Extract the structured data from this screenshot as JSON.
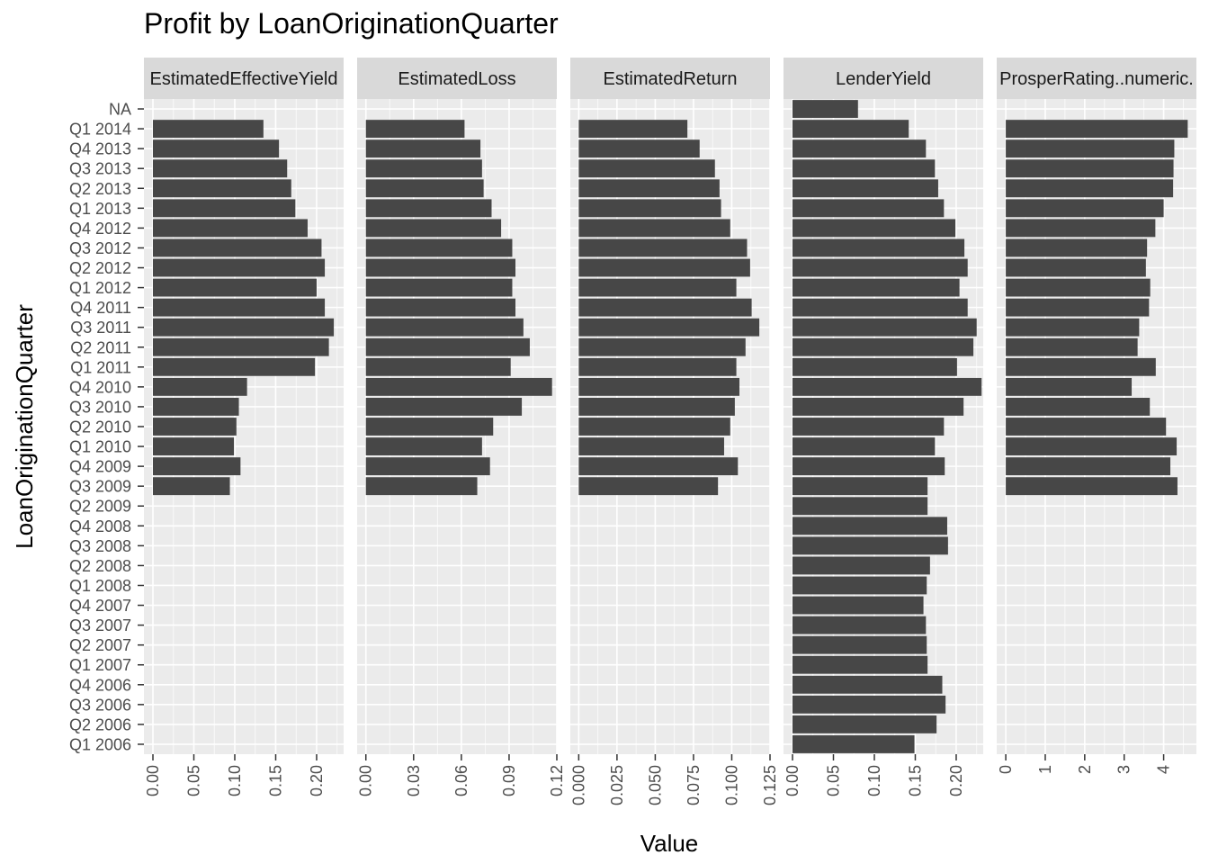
{
  "chart_data": {
    "type": "bar",
    "orientation": "horizontal",
    "faceted": true,
    "title": "Profit by LoanOriginationQuarter",
    "xlabel": "Value",
    "ylabel": "LoanOriginationQuarter",
    "grid": true,
    "legend": "none",
    "colors": {
      "bar": "#474747",
      "panel_bg": "#ebebeb",
      "strip_bg": "#d9d9d9",
      "grid": "#ffffff",
      "text": "#4d4d4d"
    },
    "categories": [
      "NA",
      "Q1 2014",
      "Q4 2013",
      "Q3 2013",
      "Q2 2013",
      "Q1 2013",
      "Q4 2012",
      "Q3 2012",
      "Q2 2012",
      "Q1 2012",
      "Q4 2011",
      "Q3 2011",
      "Q2 2011",
      "Q1 2011",
      "Q4 2010",
      "Q3 2010",
      "Q2 2010",
      "Q1 2010",
      "Q4 2009",
      "Q3 2009",
      "Q2 2009",
      "Q4 2008",
      "Q3 2008",
      "Q2 2008",
      "Q1 2008",
      "Q4 2007",
      "Q3 2007",
      "Q2 2007",
      "Q1 2007",
      "Q4 2006",
      "Q3 2006",
      "Q2 2006",
      "Q1 2006"
    ],
    "facets": [
      {
        "strip": "EstimatedEffectiveYield",
        "xlim": [
          -0.011,
          0.233
        ],
        "ticks": [
          0,
          0.05,
          0.1,
          0.15,
          0.2
        ],
        "tick_labels": [
          "0.00",
          "0.05",
          "0.10",
          "0.15",
          "0.20"
        ],
        "values": [
          null,
          0.135,
          0.154,
          0.164,
          0.169,
          0.174,
          0.189,
          0.206,
          0.21,
          0.2,
          0.21,
          0.221,
          0.215,
          0.198,
          0.115,
          0.105,
          0.102,
          0.099,
          0.107,
          0.094,
          null,
          null,
          null,
          null,
          null,
          null,
          null,
          null,
          null,
          null,
          null,
          null,
          null
        ]
      },
      {
        "strip": "EstimatedLoss",
        "xlim": [
          -0.0055,
          0.12
        ],
        "ticks": [
          0,
          0.03,
          0.06,
          0.09,
          0.12
        ],
        "tick_labels": [
          "0.00",
          "0.03",
          "0.06",
          "0.09",
          "0.12"
        ],
        "values": [
          null,
          0.062,
          0.072,
          0.073,
          0.074,
          0.079,
          0.085,
          0.092,
          0.094,
          0.092,
          0.094,
          0.099,
          0.103,
          0.091,
          0.117,
          0.098,
          0.08,
          0.073,
          0.078,
          0.07,
          null,
          null,
          null,
          null,
          null,
          null,
          null,
          null,
          null,
          null,
          null,
          null,
          null
        ]
      },
      {
        "strip": "EstimatedReturn",
        "xlim": [
          -0.0055,
          0.125
        ],
        "ticks": [
          0,
          0.025,
          0.05,
          0.075,
          0.1,
          0.125
        ],
        "tick_labels": [
          "0.000",
          "0.025",
          "0.050",
          "0.075",
          "0.100",
          "0.125"
        ],
        "values": [
          null,
          0.071,
          0.079,
          0.089,
          0.092,
          0.093,
          0.099,
          0.11,
          0.112,
          0.103,
          0.113,
          0.118,
          0.109,
          0.103,
          0.105,
          0.102,
          0.099,
          0.095,
          0.104,
          0.091,
          null,
          null,
          null,
          null,
          null,
          null,
          null,
          null,
          null,
          null,
          null,
          null,
          null
        ]
      },
      {
        "strip": "LenderYield",
        "xlim": [
          -0.011,
          0.233
        ],
        "ticks": [
          0,
          0.05,
          0.1,
          0.15,
          0.2
        ],
        "tick_labels": [
          "0.00",
          "0.05",
          "0.10",
          "0.15",
          "0.20"
        ],
        "values": [
          0.08,
          0.142,
          0.163,
          0.174,
          0.178,
          0.185,
          0.199,
          0.21,
          0.214,
          0.204,
          0.214,
          0.225,
          0.221,
          0.201,
          0.231,
          0.209,
          0.185,
          0.174,
          0.186,
          0.165,
          0.165,
          0.189,
          0.19,
          0.168,
          0.164,
          0.16,
          0.163,
          0.164,
          0.165,
          0.183,
          0.187,
          0.176,
          0.149
        ]
      },
      {
        "strip": "ProsperRating..numeric.",
        "xlim": [
          -0.23,
          4.83
        ],
        "ticks": [
          0,
          1,
          2,
          3,
          4
        ],
        "tick_labels": [
          "0",
          "1",
          "2",
          "3",
          "4"
        ],
        "values": [
          null,
          4.61,
          4.27,
          4.25,
          4.24,
          4.0,
          3.79,
          3.58,
          3.55,
          3.66,
          3.63,
          3.38,
          3.34,
          3.8,
          3.19,
          3.65,
          4.06,
          4.33,
          4.17,
          4.35,
          null,
          null,
          null,
          null,
          null,
          null,
          null,
          null,
          null,
          null,
          null,
          null,
          null
        ]
      }
    ]
  }
}
